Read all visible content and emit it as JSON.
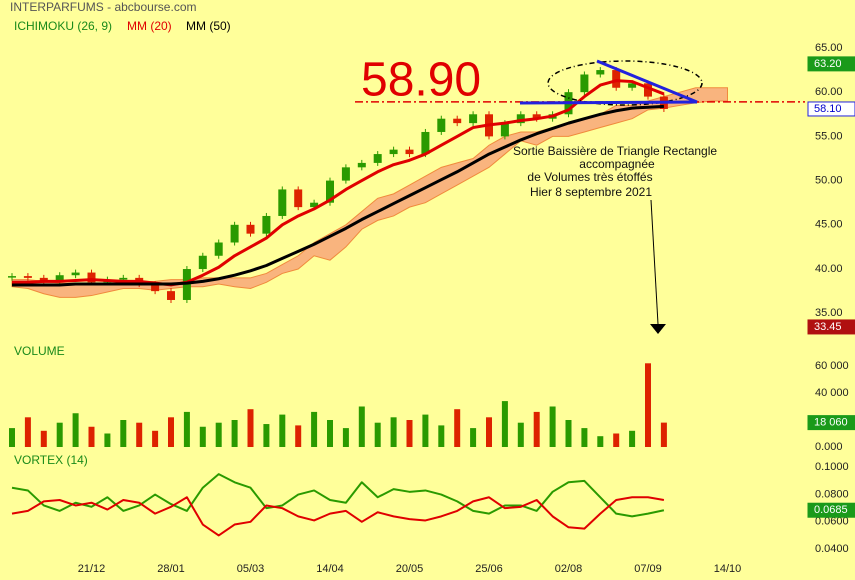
{
  "chart_data": [
    {
      "type": "candlestick",
      "title": "INTERPARFUMS - abcbourse.com",
      "categories": [
        null,
        null,
        null,
        null,
        null,
        "21/12",
        null,
        null,
        null,
        null,
        "28/01",
        null,
        null,
        null,
        null,
        "05/03",
        null,
        null,
        null,
        null,
        "14/04",
        null,
        null,
        null,
        null,
        "20/05",
        null,
        null,
        null,
        null,
        "25/06",
        null,
        null,
        null,
        null,
        "02/08",
        null,
        null,
        null,
        null,
        "07/09",
        null,
        null,
        null,
        null,
        "14/10"
      ],
      "values": [
        39.2,
        39.0,
        38.7,
        39.3,
        39.6,
        38.5,
        38.8,
        39.0,
        38.3,
        37.5,
        36.5,
        40.0,
        41.5,
        43.0,
        45.0,
        44.0,
        46.0,
        49.0,
        47.0,
        47.5,
        50.0,
        51.5,
        52.0,
        53.0,
        53.5,
        53.0,
        55.5,
        57.0,
        56.5,
        57.5,
        55.0,
        56.5,
        57.5,
        57.0,
        57.5,
        60.0,
        62.0,
        62.5,
        60.5,
        61.0,
        59.5,
        58.1,
        null,
        null,
        null,
        null
      ],
      "color_up": "#2a9a00",
      "color_down": "#dd2200",
      "cloud": {
        "name": "ICHIMOKU (26, 9)",
        "color": "#f9b47e",
        "edge": "#f08a3c",
        "upper": [
          38.8,
          38.8,
          38.6,
          38.4,
          38.3,
          38.3,
          38.3,
          38.4,
          38.5,
          38.6,
          38.8,
          38.8,
          39.0,
          39.0,
          39.0,
          39.0,
          39.5,
          40.5,
          41.5,
          43.0,
          44.0,
          45.0,
          46.5,
          48.0,
          48.5,
          49.5,
          50.5,
          51.5,
          52.0,
          52.5,
          54.0,
          55.0,
          55.5,
          55.5,
          56.0,
          56.5,
          57.0,
          57.5,
          58.5,
          58.5,
          59.0,
          59.5,
          60.0,
          60.5,
          60.5,
          60.5
        ],
        "lower": [
          38.0,
          37.8,
          37.2,
          36.8,
          36.8,
          37.0,
          37.4,
          37.8,
          37.8,
          37.6,
          37.8,
          38.0,
          38.0,
          38.3,
          38.0,
          37.8,
          38.5,
          39.5,
          40.0,
          41.5,
          41.0,
          42.5,
          44.5,
          45.5,
          46.0,
          47.0,
          47.5,
          48.5,
          49.5,
          50.5,
          51.5,
          53.0,
          54.5,
          54.0,
          55.0,
          55.0,
          55.5,
          56.0,
          56.5,
          57.0,
          58.0,
          58.2,
          58.5,
          58.8,
          59.0,
          59.0
        ]
      },
      "series": [
        {
          "name": "MM (20)",
          "color": "#e00000",
          "values": [
            38.5,
            38.5,
            38.6,
            38.6,
            38.7,
            38.8,
            38.7,
            38.6,
            38.6,
            38.4,
            38.2,
            38.5,
            39.3,
            40.2,
            41.5,
            42.5,
            43.5,
            45.0,
            46.0,
            46.8,
            47.8,
            49.0,
            50.0,
            51.0,
            51.8,
            52.3,
            53.0,
            54.0,
            55.0,
            56.0,
            56.3,
            56.5,
            56.8,
            57.0,
            57.3,
            58.0,
            59.5,
            60.8,
            61.3,
            61.2,
            60.5,
            59.8,
            null,
            null,
            null,
            null
          ]
        },
        {
          "name": "MM (50)",
          "color": "#000000",
          "values": [
            38.2,
            38.2,
            38.2,
            38.2,
            38.3,
            38.3,
            38.3,
            38.3,
            38.3,
            38.3,
            38.3,
            38.4,
            38.6,
            38.9,
            39.3,
            39.8,
            40.4,
            41.2,
            42.0,
            42.8,
            43.7,
            44.6,
            45.6,
            46.5,
            47.4,
            48.3,
            49.2,
            50.1,
            51.0,
            52.0,
            53.0,
            53.8,
            54.6,
            55.3,
            55.9,
            56.5,
            57.0,
            57.5,
            57.9,
            58.2,
            58.3,
            58.4,
            null,
            null,
            null,
            null
          ]
        }
      ],
      "ylim": [
        32.2,
        65.9
      ],
      "yticks": [
        {
          "value": 35,
          "label": "35.00"
        },
        {
          "value": 40,
          "label": "40.00"
        },
        {
          "value": 45,
          "label": "45.00"
        },
        {
          "value": 50,
          "label": "50.00"
        },
        {
          "value": 55,
          "label": "55.00"
        },
        {
          "value": 60,
          "label": "60.00"
        },
        {
          "value": 65,
          "label": "65.00"
        }
      ],
      "tags": [
        {
          "value": 63.2,
          "label": "63.20",
          "color": "#1a9a1a",
          "text_color": "#ffffff"
        },
        {
          "value": 58.1,
          "label": "58.10",
          "color": "#ffffff",
          "text_color": "#0000cc"
        },
        {
          "value": 33.45,
          "label": "33.45",
          "color": "#b01010",
          "text_color": "#ffffff"
        }
      ],
      "annotation": {
        "value": 58.9,
        "label": "58.90",
        "color": "#e00000"
      },
      "note": [
        "Sortie Baissière de Triangle Rectangle",
        "accompagnée",
        "de Volumes très étoffés",
        "Hier 8 septembre 2021"
      ]
    },
    {
      "type": "bar",
      "title": "VOLUME",
      "values": [
        14000,
        22000,
        12000,
        18000,
        25000,
        15000,
        10000,
        20000,
        18000,
        12000,
        22000,
        26000,
        15000,
        18000,
        20000,
        28000,
        17000,
        24000,
        16000,
        26000,
        20000,
        14000,
        30000,
        18000,
        22000,
        20000,
        24000,
        16000,
        28000,
        14000,
        22000,
        34000,
        18000,
        26000,
        30000,
        20000,
        14000,
        8000,
        10000,
        12000,
        62000,
        18060,
        null,
        null,
        null,
        null
      ],
      "ylim": [
        0,
        70000
      ],
      "yticks": [
        {
          "value": 0,
          "label": "0.000"
        },
        {
          "value": 40000,
          "label": "40 000"
        },
        {
          "value": 60000,
          "label": "60 000"
        }
      ],
      "tags": [
        {
          "value": 18060,
          "label": "18 060",
          "color": "#1a9a1a",
          "text_color": "#ffffff"
        }
      ]
    },
    {
      "type": "line",
      "title": "VORTEX (14)",
      "series": [
        {
          "color": "#2a9a00",
          "values": [
            0.085,
            0.083,
            0.072,
            0.068,
            0.074,
            0.071,
            0.078,
            0.068,
            0.072,
            0.08,
            0.073,
            0.068,
            0.085,
            0.095,
            0.089,
            0.085,
            0.07,
            0.072,
            0.08,
            0.083,
            0.076,
            0.074,
            0.089,
            0.078,
            0.084,
            0.082,
            0.083,
            0.08,
            0.075,
            0.068,
            0.066,
            0.072,
            0.072,
            0.068,
            0.082,
            0.089,
            0.09,
            0.078,
            0.066,
            0.064,
            0.066,
            0.0685,
            null,
            null,
            null,
            null
          ]
        },
        {
          "color": "#e00000",
          "values": [
            0.066,
            0.068,
            0.075,
            0.076,
            0.072,
            0.074,
            0.069,
            0.076,
            0.074,
            0.066,
            0.071,
            0.078,
            0.058,
            0.05,
            0.058,
            0.06,
            0.072,
            0.07,
            0.064,
            0.061,
            0.066,
            0.068,
            0.06,
            0.067,
            0.064,
            0.062,
            0.061,
            0.064,
            0.068,
            0.075,
            0.078,
            0.07,
            0.071,
            0.076,
            0.064,
            0.056,
            0.055,
            0.066,
            0.076,
            0.078,
            0.078,
            0.076,
            null,
            null,
            null,
            null
          ]
        }
      ],
      "ylim": [
        0.032,
        0.109
      ],
      "yticks": [
        {
          "value": 0.04,
          "label": "0.0400"
        },
        {
          "value": 0.06,
          "label": "0.0600"
        },
        {
          "value": 0.08,
          "label": "0.0800"
        },
        {
          "value": 0.1,
          "label": "0.1000"
        }
      ],
      "tags": [
        {
          "value": 0.0685,
          "label": "0.0685",
          "color": "#1a9a1a",
          "text_color": "#ffffff"
        }
      ]
    }
  ]
}
